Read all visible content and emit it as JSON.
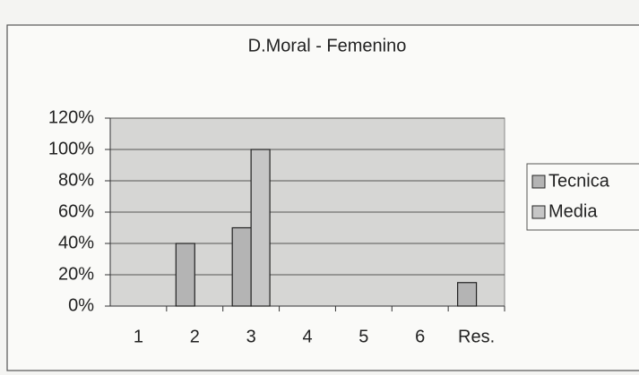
{
  "chart_data": {
    "type": "bar",
    "title": "D.Moral - Femenino",
    "categories": [
      "1",
      "2",
      "3",
      "4",
      "5",
      "6",
      "Res."
    ],
    "series": [
      {
        "name": "Tecnica",
        "color": "#b4b4b4",
        "values": [
          0,
          40,
          50,
          0,
          0,
          0,
          15
        ]
      },
      {
        "name": "Media",
        "color": "#c6c6c6",
        "values": [
          0,
          0,
          100,
          0,
          0,
          0,
          0
        ]
      }
    ],
    "ylim": [
      0,
      120
    ],
    "yticks": [
      {
        "value": 0,
        "label": "0%"
      },
      {
        "value": 20,
        "label": "20%"
      },
      {
        "value": 40,
        "label": "40%"
      },
      {
        "value": 60,
        "label": "60%"
      },
      {
        "value": 80,
        "label": "80%"
      },
      {
        "value": 100,
        "label": "100%"
      },
      {
        "value": 120,
        "label": "120%"
      }
    ],
    "grid": true,
    "legend": "right"
  }
}
